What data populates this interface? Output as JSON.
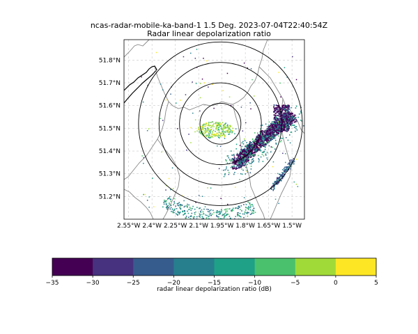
{
  "title_line1": "ncas-radar-mobile-ka-band-1 1.5 Deg. 2023-07-04T22:40:54Z",
  "title_line2": "Radar linear depolarization ratio",
  "map": {
    "lat_ticks": [
      "51.2°N",
      "51.3°N",
      "51.4°N",
      "51.5°N",
      "51.6°N",
      "51.7°N",
      "51.8°N"
    ],
    "lon_ticks": [
      "2.55°W",
      "2.4°W",
      "2.25°W",
      "2.1°W",
      "1.95°W",
      "1.8°W",
      "1.65°W",
      "1.5°W"
    ],
    "lat_values": [
      51.2,
      51.3,
      51.4,
      51.5,
      51.6,
      51.7,
      51.8
    ],
    "lon_values": [
      -2.55,
      -2.4,
      -2.25,
      -2.1,
      -1.95,
      -1.8,
      -1.65,
      -1.5
    ],
    "lon_range": [
      -2.58,
      -1.42
    ],
    "lat_range": [
      51.1,
      51.89
    ],
    "radar_center": {
      "lon": -1.96,
      "lat": 51.52
    },
    "range_ring_degrees_lat": [
      0.09,
      0.18,
      0.27,
      0.36
    ],
    "grid": true
  },
  "colorbar": {
    "label": "radar linear depolarization ratio (dB)",
    "ticks": [
      "−35",
      "−30",
      "−25",
      "−20",
      "−15",
      "−10",
      "−5",
      "0",
      "5"
    ],
    "colors": [
      "#440154",
      "#46327e",
      "#365c8d",
      "#277f8e",
      "#1fa187",
      "#4ac16d",
      "#a0da39",
      "#fde725"
    ]
  }
}
